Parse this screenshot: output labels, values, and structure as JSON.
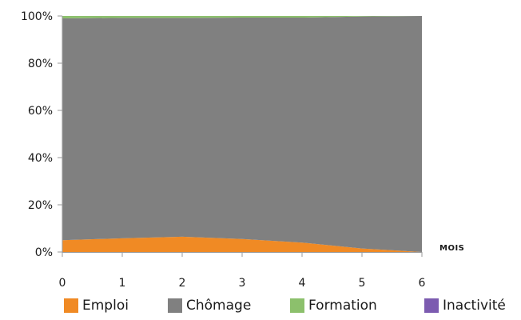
{
  "chart_data": {
    "type": "area",
    "stacked": true,
    "percent": true,
    "x": [
      0,
      1,
      2,
      3,
      4,
      5,
      6
    ],
    "xunit": "MOIS",
    "ylim": [
      0,
      100
    ],
    "yticks": [
      "0%",
      "20%",
      "40%",
      "60%",
      "80%",
      "100%"
    ],
    "xticks": [
      "0",
      "1",
      "2",
      "3",
      "4",
      "5",
      "6"
    ],
    "series": [
      {
        "name": "Emploi",
        "color": "#f08a24",
        "values": [
          5,
          5.8,
          6.5,
          5.5,
          4,
          1.5,
          0
        ]
      },
      {
        "name": "Chômage",
        "color": "#808080",
        "values": [
          94,
          93.4,
          92.7,
          93.8,
          95.3,
          98.3,
          100
        ]
      },
      {
        "name": "Formation",
        "color": "#8cc06c",
        "values": [
          1,
          0.8,
          0.8,
          0.7,
          0.7,
          0.2,
          0
        ]
      },
      {
        "name": "Inactivité",
        "color": "#7c5bb0",
        "values": [
          0,
          0,
          0,
          0,
          0,
          0,
          0
        ]
      }
    ],
    "grid": false,
    "legend_position": "bottom"
  }
}
